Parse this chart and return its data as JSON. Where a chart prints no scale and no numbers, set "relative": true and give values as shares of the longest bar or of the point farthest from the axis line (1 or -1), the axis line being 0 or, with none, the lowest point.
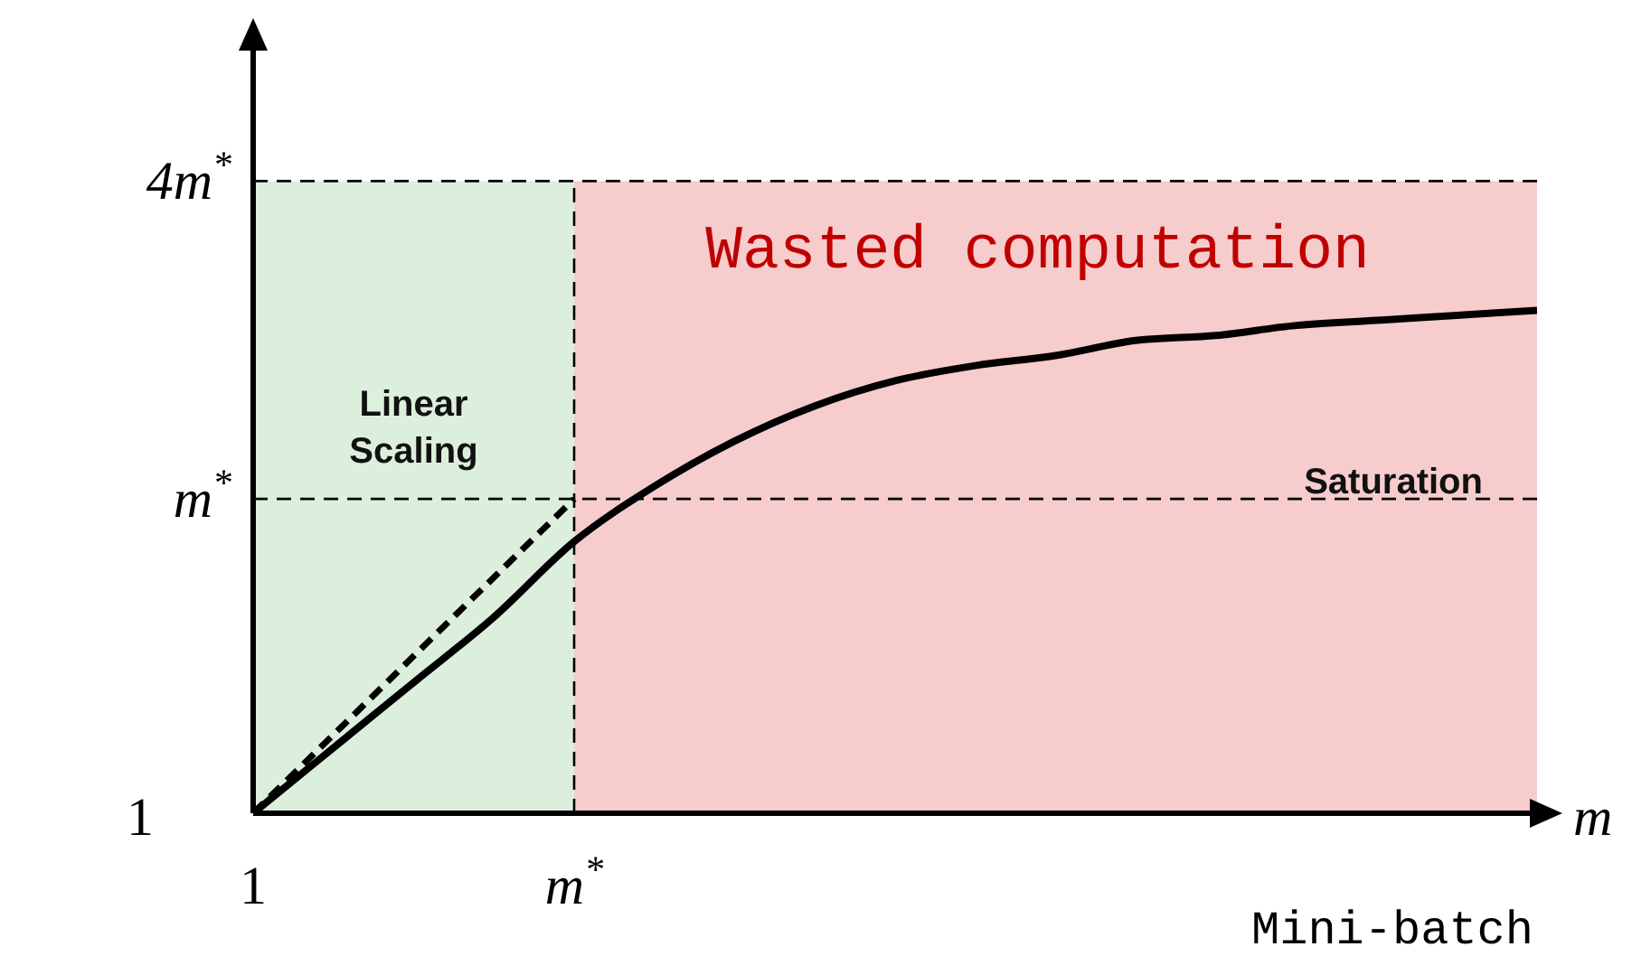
{
  "chart_data": {
    "type": "line",
    "relative": true,
    "xlabel": "m",
    "marker": "none",
    "categories": [
      null,
      null,
      null,
      null,
      null,
      null,
      null,
      null,
      null,
      null,
      null,
      null,
      null,
      null,
      null,
      null,
      null
    ],
    "series": [
      {
        "color": "#000000",
        "line_style": "solid",
        "values": [
          0,
          0.13,
          0.26,
          0.39,
          0.54,
          0.65,
          0.74,
          0.81,
          0.86,
          0.89,
          0.91,
          0.94,
          0.95,
          0.97,
          0.98,
          0.99,
          1
        ]
      },
      {
        "color": "#000000",
        "line_style": "dashed",
        "values": [
          0,
          0.156,
          0.3125,
          0.469,
          0.625,
          null,
          null,
          null,
          null,
          null,
          null,
          null,
          null,
          null,
          null,
          null,
          null
        ]
      }
    ],
    "ref_lines": [
      {
        "axis": "y",
        "value": 0.625,
        "label": "m$^{*}$",
        "line_style": "dashed",
        "color": "#000000"
      },
      {
        "axis": "y",
        "value": 1.257,
        "label": "4m$^{*}$",
        "line_style": "dashed",
        "color": "#000000"
      }
    ],
    "annotations": [
      "1",
      "1",
      "m$^{*}$",
      "Linear Scaling",
      "Wasted computation",
      "Saturation",
      "Mini-batch"
    ]
  }
}
